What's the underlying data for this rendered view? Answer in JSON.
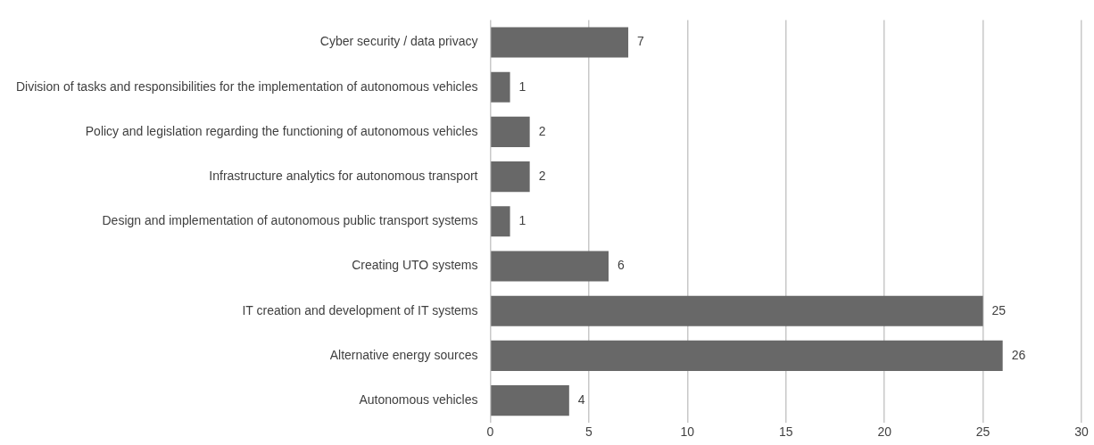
{
  "chart_data": {
    "type": "bar",
    "orientation": "horizontal",
    "categories": [
      "Cyber security / data privacy",
      "Division of tasks and responsibilities for the implementation of autonomous vehicles",
      "Policy and legislation regarding the functioning of autonomous vehicles",
      "Infrastructure analytics for autonomous transport",
      "Design and implementation of autonomous public transport systems",
      "Creating UTO systems",
      "IT creation and development of IT systems",
      "Alternative energy sources",
      "Autonomous vehicles"
    ],
    "values": [
      7,
      1,
      2,
      2,
      1,
      6,
      25,
      26,
      4
    ],
    "color": "#686868",
    "xlim": [
      0,
      30
    ],
    "xticks": [
      0,
      5,
      10,
      15,
      20,
      25,
      30
    ],
    "grid": "x",
    "data_labels": true,
    "legend": false
  }
}
